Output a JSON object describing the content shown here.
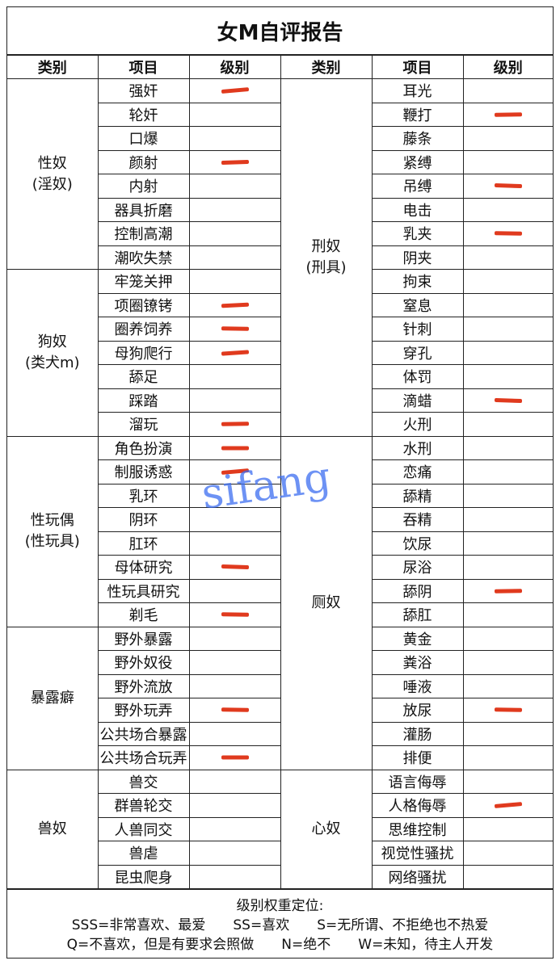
{
  "title": "女M自评报告",
  "headers": [
    "类别",
    "项目",
    "级别",
    "类别",
    "项目",
    "级别"
  ],
  "mark_color": "#e03a1e",
  "left_groups": [
    {
      "category": "性奴",
      "sub": "(淫奴)",
      "items": [
        {
          "name": "强奸",
          "marked": true
        },
        {
          "name": "轮奸",
          "marked": false
        },
        {
          "name": "口爆",
          "marked": false
        },
        {
          "name": "颜射",
          "marked": true
        },
        {
          "name": "内射",
          "marked": false
        },
        {
          "name": "器具折磨",
          "marked": false
        },
        {
          "name": "控制高潮",
          "marked": false
        },
        {
          "name": "潮吹失禁",
          "marked": false
        }
      ]
    },
    {
      "category": "狗奴",
      "sub": "(类犬m)",
      "items": [
        {
          "name": "牢笼关押",
          "marked": false
        },
        {
          "name": "项圈镣铐",
          "marked": true
        },
        {
          "name": "圈养饲养",
          "marked": true
        },
        {
          "name": "母狗爬行",
          "marked": true
        },
        {
          "name": "舔足",
          "marked": false
        },
        {
          "name": "踩踏",
          "marked": false
        },
        {
          "name": "溜玩",
          "marked": true
        }
      ]
    },
    {
      "category": "性玩偶",
      "sub": "(性玩具)",
      "items": [
        {
          "name": "角色扮演",
          "marked": true
        },
        {
          "name": "制服诱惑",
          "marked": true
        },
        {
          "name": "乳环",
          "marked": false
        },
        {
          "name": "阴环",
          "marked": false
        },
        {
          "name": "肛环",
          "marked": false
        },
        {
          "name": "母体研究",
          "marked": true
        },
        {
          "name": "性玩具研究",
          "marked": false
        },
        {
          "name": "剃毛",
          "marked": true
        }
      ]
    },
    {
      "category": "暴露癖",
      "sub": "",
      "items": [
        {
          "name": "野外暴露",
          "marked": false
        },
        {
          "name": "野外奴役",
          "marked": false
        },
        {
          "name": "野外流放",
          "marked": false
        },
        {
          "name": "野外玩弄",
          "marked": true
        },
        {
          "name": "公共场合暴露",
          "marked": false
        },
        {
          "name": "公共场合玩弄",
          "marked": true
        }
      ]
    },
    {
      "category": "兽奴",
      "sub": "",
      "items": [
        {
          "name": "兽交",
          "marked": false
        },
        {
          "name": "群兽轮交",
          "marked": false
        },
        {
          "name": "人兽同交",
          "marked": false
        },
        {
          "name": "兽虐",
          "marked": false
        },
        {
          "name": "昆虫爬身",
          "marked": false
        }
      ]
    }
  ],
  "right_groups": [
    {
      "category": "刑奴",
      "sub": "(刑具)",
      "items": [
        {
          "name": "耳光",
          "marked": false
        },
        {
          "name": "鞭打",
          "marked": true
        },
        {
          "name": "藤条",
          "marked": false
        },
        {
          "name": "紧缚",
          "marked": false
        },
        {
          "name": "吊缚",
          "marked": true
        },
        {
          "name": "电击",
          "marked": false
        },
        {
          "name": "乳夹",
          "marked": true
        },
        {
          "name": "阴夹",
          "marked": false
        },
        {
          "name": "拘束",
          "marked": false
        },
        {
          "name": "窒息",
          "marked": false
        },
        {
          "name": "针刺",
          "marked": false
        },
        {
          "name": "穿孔",
          "marked": false
        },
        {
          "name": "体罚",
          "marked": false
        },
        {
          "name": "滴蜡",
          "marked": true
        },
        {
          "name": "火刑",
          "marked": false
        }
      ]
    },
    {
      "category": "厕奴",
      "sub": "",
      "items": [
        {
          "name": "水刑",
          "marked": false
        },
        {
          "name": "恋痛",
          "marked": false
        },
        {
          "name": "舔精",
          "marked": false
        },
        {
          "name": "吞精",
          "marked": false
        },
        {
          "name": "饮尿",
          "marked": false
        },
        {
          "name": "尿浴",
          "marked": false
        },
        {
          "name": "舔阴",
          "marked": true
        },
        {
          "name": "舔肛",
          "marked": false
        },
        {
          "name": "黄金",
          "marked": false
        },
        {
          "name": "粪浴",
          "marked": false
        },
        {
          "name": "唾液",
          "marked": false
        },
        {
          "name": "放尿",
          "marked": true
        },
        {
          "name": "灌肠",
          "marked": false
        },
        {
          "name": "排便",
          "marked": false
        }
      ]
    },
    {
      "category": "心奴",
      "sub": "",
      "items": [
        {
          "name": "语言侮辱",
          "marked": false
        },
        {
          "name": "人格侮辱",
          "marked": true
        },
        {
          "name": "思维控制",
          "marked": false
        },
        {
          "name": "视觉性骚扰",
          "marked": false
        },
        {
          "name": "网络骚扰",
          "marked": false
        }
      ]
    }
  ],
  "footer": {
    "heading": "级别权重定位:",
    "line1": "SSS=非常喜欢、最爱　　SS=喜欢　　S=无所谓、不拒绝也不热爱",
    "line2": "Q=不喜欢，但是有要求会照做　　N=绝不　　W=未知，待主人开发"
  },
  "watermark": "sifang"
}
